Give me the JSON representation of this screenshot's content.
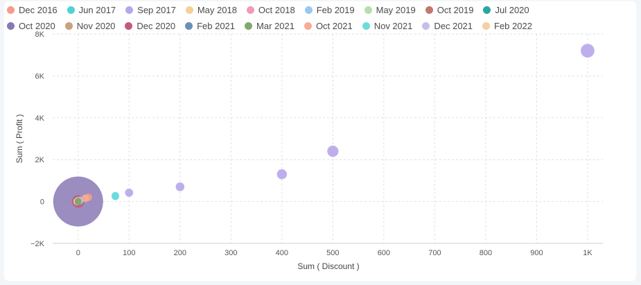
{
  "chart_data": {
    "type": "scatter",
    "title": "",
    "xlabel": "Sum ( Discount )",
    "ylabel": "Sum ( Profit )",
    "xlim": [
      -50,
      1030
    ],
    "ylim": [
      -2000,
      8000
    ],
    "x_ticks": [
      0,
      100,
      200,
      300,
      400,
      500,
      600,
      700,
      800,
      900,
      1000
    ],
    "x_tick_labels": [
      "0",
      "100",
      "200",
      "300",
      "400",
      "500",
      "600",
      "700",
      "800",
      "900",
      "1K"
    ],
    "y_ticks": [
      -2000,
      0,
      2000,
      4000,
      6000,
      8000
    ],
    "y_tick_labels": [
      "−2K",
      "0",
      "2K",
      "4K",
      "6K",
      "8K"
    ],
    "grid": true,
    "legend_position": "top",
    "series": [
      {
        "name": "Dec 2016",
        "color": "#f79c8a",
        "points": [
          {
            "x": 20,
            "y": 200,
            "size": 0.3
          }
        ]
      },
      {
        "name": "Jun 2017",
        "color": "#4fd3d3",
        "points": [
          {
            "x": 73,
            "y": 250,
            "size": 0.3
          }
        ]
      },
      {
        "name": "Sep 2017",
        "color": "#b7a6ea",
        "points": [
          {
            "x": 100,
            "y": 420,
            "size": 0.33
          },
          {
            "x": 200,
            "y": 700,
            "size": 0.35
          },
          {
            "x": 400,
            "y": 1300,
            "size": 0.4
          },
          {
            "x": 500,
            "y": 2400,
            "size": 0.45
          },
          {
            "x": 1000,
            "y": 7200,
            "size": 0.55
          }
        ]
      },
      {
        "name": "May 2018",
        "color": "#f7cf9b",
        "points": [
          {
            "x": 0,
            "y": 50,
            "size": 0.25
          }
        ]
      },
      {
        "name": "Oct 2018",
        "color": "#f09ab9",
        "points": [
          {
            "x": 5,
            "y": 80,
            "size": 0.25
          }
        ]
      },
      {
        "name": "Feb 2019",
        "color": "#96c8f2",
        "points": [
          {
            "x": 3,
            "y": 20,
            "size": 0.2
          }
        ]
      },
      {
        "name": "May 2019",
        "color": "#b5e0a8",
        "points": [
          {
            "x": 2,
            "y": 10,
            "size": 0.2
          }
        ]
      },
      {
        "name": "Oct 2019",
        "color": "#c0786f",
        "points": [
          {
            "x": 0,
            "y": 0,
            "size": 0.25
          }
        ]
      },
      {
        "name": "Jul 2020",
        "color": "#2ba5a0",
        "points": [
          {
            "x": 0,
            "y": 0,
            "size": 0.2
          }
        ]
      },
      {
        "name": "Oct 2020",
        "color": "#8979b4",
        "points": [
          {
            "x": 0,
            "y": 0,
            "size": 2.0
          }
        ]
      },
      {
        "name": "Nov 2020",
        "color": "#c9a27e",
        "points": [
          {
            "x": 0,
            "y": 0,
            "size": 0.3
          }
        ]
      },
      {
        "name": "Dec 2020",
        "color": "#c05b7a",
        "points": [
          {
            "x": 0,
            "y": 0,
            "size": 0.5
          }
        ]
      },
      {
        "name": "Feb 2021",
        "color": "#6b8fb8",
        "points": [
          {
            "x": 0,
            "y": 0,
            "size": 0.2
          }
        ]
      },
      {
        "name": "Mar 2021",
        "color": "#84a86a",
        "points": [
          {
            "x": 0,
            "y": 0,
            "size": 0.2
          }
        ]
      },
      {
        "name": "Oct 2021",
        "color": "#f7ad94",
        "points": [
          {
            "x": 14,
            "y": 150,
            "size": 0.3
          }
        ]
      },
      {
        "name": "Nov 2021",
        "color": "#6fdcdc",
        "points": [
          {
            "x": 73,
            "y": 280,
            "size": 0.3
          }
        ]
      },
      {
        "name": "Dec 2021",
        "color": "#c8bdeb",
        "points": [
          {
            "x": 0,
            "y": 0,
            "size": 0.25
          }
        ]
      },
      {
        "name": "Feb 2022",
        "color": "#f4d0a3",
        "points": [
          {
            "x": -2,
            "y": 0,
            "size": 0.3
          }
        ]
      }
    ]
  }
}
